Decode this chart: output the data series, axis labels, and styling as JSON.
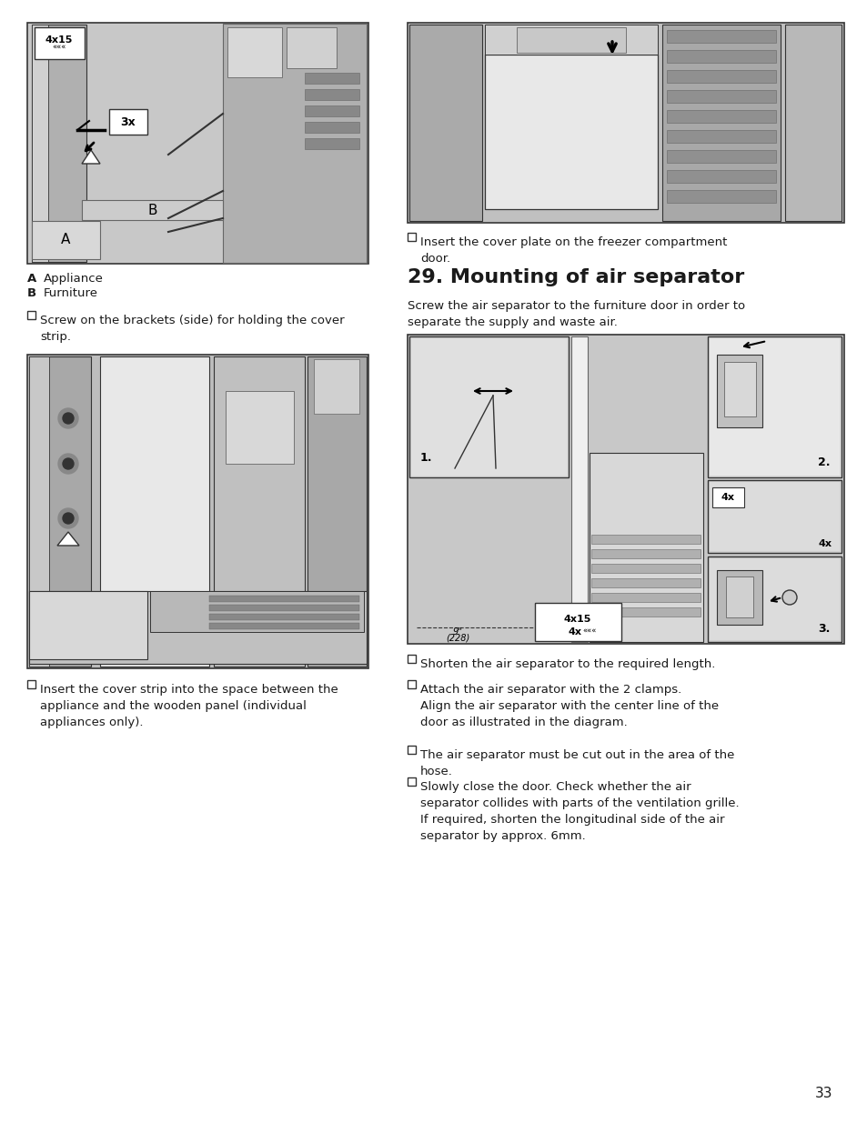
{
  "page_number": "33",
  "background_color": "#ffffff",
  "section_title": "29. Mounting of air separator",
  "section_intro": "Screw the air separator to the furniture door in order to\nseparate the supply and waste air.",
  "label_A_bold": "A",
  "label_A_text": "Appliance",
  "label_B_bold": "B",
  "label_B_text": "Furniture",
  "bullet1_left": "Screw on the brackets (side) for holding the cover\nstrip.",
  "bullet2_left": "Insert the cover strip into the space between the\nappliance and the wooden panel (individual\nappliances only).",
  "bullet_insert_cover": "Insert the cover plate on the freezer compartment\ndoor.",
  "bullet_shorten": "Shorten the air separator to the required length.",
  "bullet_attach": "Attach the air separator with the 2 clamps.\nAlign the air separator with the center line of the\ndoor as illustrated in the diagram.",
  "bullet_cut": "The air separator must be cut out in the area of the\nhose.",
  "bullet_close": "Slowly close the door. Check whether the air\nseparator collides with parts of the ventilation grille.\nIf required, shorten the longitudinal side of the air\nseparator by approx. 6mm.",
  "text_color": "#1a1a1a",
  "light_gray": "#e0e0e0",
  "mid_gray": "#b8b8b8",
  "dark_gray": "#888888",
  "border_dark": "#333333",
  "border_mid": "#666666"
}
